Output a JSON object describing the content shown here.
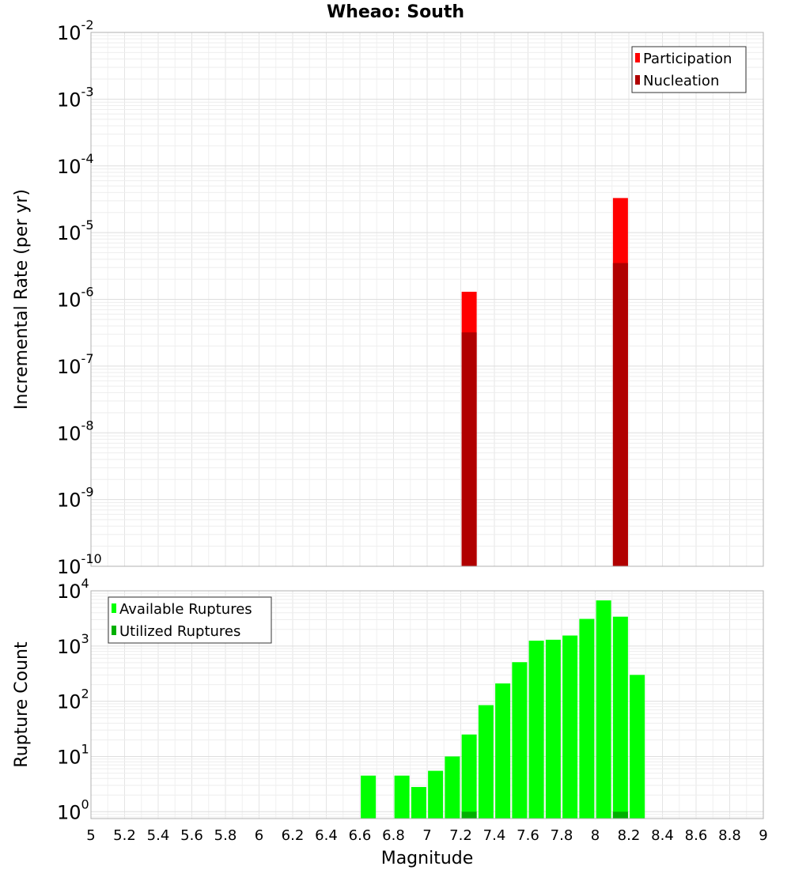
{
  "chart_data": [
    {
      "type": "bar",
      "title": "Wheao: South",
      "ylabel": "Incremental Rate (per yr)",
      "xlabel": "",
      "xlim": [
        5,
        9
      ],
      "ylim": [
        1e-10,
        0.01
      ],
      "y_scale": "log",
      "y_ticks": [
        {
          "base": "10",
          "exp": "-2",
          "value": 0.01
        },
        {
          "base": "10",
          "exp": "-3",
          "value": 0.001
        },
        {
          "base": "10",
          "exp": "-4",
          "value": 0.0001
        },
        {
          "base": "10",
          "exp": "-5",
          "value": 1e-05
        },
        {
          "base": "10",
          "exp": "-6",
          "value": 1e-06
        },
        {
          "base": "10",
          "exp": "-7",
          "value": 1e-07
        },
        {
          "base": "10",
          "exp": "-8",
          "value": 1e-08
        },
        {
          "base": "10",
          "exp": "-9",
          "value": 1e-09
        },
        {
          "base": "10",
          "exp": "-10",
          "value": 1e-10
        }
      ],
      "grid": true,
      "legend_position": "top-right",
      "series": [
        {
          "name": "Participation",
          "color": "#ff0000",
          "x": [
            7.25,
            8.15
          ],
          "values": [
            1.3e-06,
            3.3e-05
          ]
        },
        {
          "name": "Nucleation",
          "color": "#b00000",
          "x": [
            7.25,
            8.15
          ],
          "values": [
            3.2e-07,
            3.5e-06
          ]
        }
      ]
    },
    {
      "type": "bar",
      "title": "",
      "ylabel": "Rupture Count",
      "xlabel": "Magnitude",
      "xlim": [
        5,
        9
      ],
      "ylim": [
        0.75,
        10000
      ],
      "y_scale": "log",
      "y_ticks": [
        {
          "base": "10",
          "exp": "4",
          "value": 10000
        },
        {
          "base": "10",
          "exp": "3",
          "value": 1000
        },
        {
          "base": "10",
          "exp": "2",
          "value": 100
        },
        {
          "base": "10",
          "exp": "1",
          "value": 10
        },
        {
          "base": "10",
          "exp": "0",
          "value": 1
        }
      ],
      "x_ticks": [
        "5",
        "5.2",
        "5.4",
        "5.6",
        "5.8",
        "6",
        "6.2",
        "6.4",
        "6.6",
        "6.8",
        "7",
        "7.2",
        "7.4",
        "7.6",
        "7.8",
        "8",
        "8.2",
        "8.4",
        "8.6",
        "8.8",
        "9"
      ],
      "grid": true,
      "legend_position": "top-left",
      "series": [
        {
          "name": "Available Ruptures",
          "color": "#00ff00",
          "x": [
            6.65,
            6.85,
            6.95,
            7.05,
            7.15,
            7.25,
            7.35,
            7.45,
            7.55,
            7.65,
            7.75,
            7.85,
            7.95,
            8.05,
            8.15,
            8.25
          ],
          "values": [
            4.5,
            4.5,
            2.8,
            5.5,
            10,
            25,
            85,
            210,
            510,
            1250,
            1300,
            1550,
            3100,
            6700,
            3400,
            300
          ]
        },
        {
          "name": "Utilized Ruptures",
          "color": "#00b000",
          "x": [
            7.25,
            8.15
          ],
          "values": [
            1,
            1
          ]
        }
      ]
    }
  ]
}
